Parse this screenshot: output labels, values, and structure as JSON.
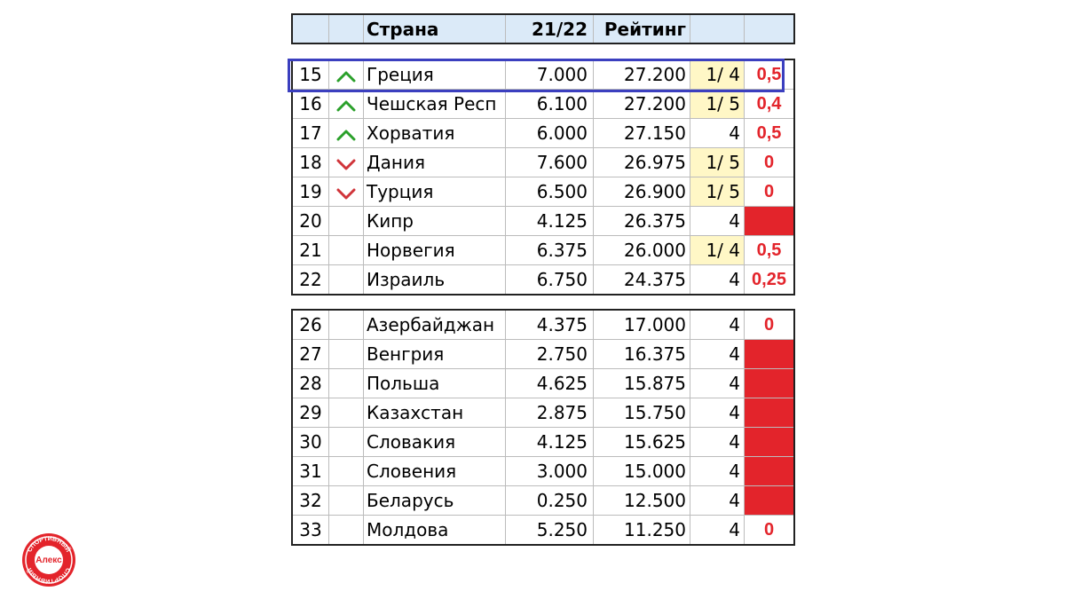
{
  "header": {
    "col_country": "Страна",
    "col_season": "21/22",
    "col_rating": "Рейтинг"
  },
  "colors": {
    "up": "#2aa02a",
    "down": "#d0343a",
    "red_fill": "#e3242b",
    "yellow_fill": "#fff7c6",
    "header_fill": "#dbeaf8",
    "highlight_border": "#3b3fbf"
  },
  "table1": [
    {
      "rank": "15",
      "trend": "up",
      "country": "Греция",
      "season": "7.000",
      "rating": "27.200",
      "pos": "1/ 4",
      "pos_bg": "yellow",
      "extra": "0,5",
      "extra_bg": "none"
    },
    {
      "rank": "16",
      "trend": "up",
      "country": "Чешская Респ",
      "season": "6.100",
      "rating": "27.200",
      "pos": "1/ 5",
      "pos_bg": "yellow",
      "extra": "0,4",
      "extra_bg": "none"
    },
    {
      "rank": "17",
      "trend": "up",
      "country": "Хорватия",
      "season": "6.000",
      "rating": "27.150",
      "pos": "4",
      "pos_bg": "none",
      "extra": "0,5",
      "extra_bg": "none"
    },
    {
      "rank": "18",
      "trend": "down",
      "country": "Дания",
      "season": "7.600",
      "rating": "26.975",
      "pos": "1/ 5",
      "pos_bg": "yellow",
      "extra": "0",
      "extra_bg": "none"
    },
    {
      "rank": "19",
      "trend": "down",
      "country": "Турция",
      "season": "6.500",
      "rating": "26.900",
      "pos": "1/ 5",
      "pos_bg": "yellow",
      "extra": "0",
      "extra_bg": "none"
    },
    {
      "rank": "20",
      "trend": "",
      "country": "Кипр",
      "season": "4.125",
      "rating": "26.375",
      "pos": "4",
      "pos_bg": "none",
      "extra": "",
      "extra_bg": "red"
    },
    {
      "rank": "21",
      "trend": "",
      "country": "Норвегия",
      "season": "6.375",
      "rating": "26.000",
      "pos": "1/ 4",
      "pos_bg": "yellow",
      "extra": "0,5",
      "extra_bg": "none"
    },
    {
      "rank": "22",
      "trend": "",
      "country": "Израиль",
      "season": "6.750",
      "rating": "24.375",
      "pos": "4",
      "pos_bg": "none",
      "extra": "0,25",
      "extra_bg": "none"
    }
  ],
  "table2": [
    {
      "rank": "26",
      "trend": "",
      "country": "Азербайджан",
      "season": "4.375",
      "rating": "17.000",
      "pos": "4",
      "pos_bg": "none",
      "extra": "0",
      "extra_bg": "none"
    },
    {
      "rank": "27",
      "trend": "",
      "country": "Венгрия",
      "season": "2.750",
      "rating": "16.375",
      "pos": "4",
      "pos_bg": "none",
      "extra": "",
      "extra_bg": "red"
    },
    {
      "rank": "28",
      "trend": "",
      "country": "Польша",
      "season": "4.625",
      "rating": "15.875",
      "pos": "4",
      "pos_bg": "none",
      "extra": "",
      "extra_bg": "red"
    },
    {
      "rank": "29",
      "trend": "",
      "country": "Казахстан",
      "season": "2.875",
      "rating": "15.750",
      "pos": "4",
      "pos_bg": "none",
      "extra": "",
      "extra_bg": "red"
    },
    {
      "rank": "30",
      "trend": "",
      "country": "Словакия",
      "season": "4.125",
      "rating": "15.625",
      "pos": "4",
      "pos_bg": "none",
      "extra": "",
      "extra_bg": "red"
    },
    {
      "rank": "31",
      "trend": "",
      "country": "Словения",
      "season": "3.000",
      "rating": "15.000",
      "pos": "4",
      "pos_bg": "none",
      "extra": "",
      "extra_bg": "red"
    },
    {
      "rank": "32",
      "trend": "",
      "country": "Беларусь",
      "season": "0.250",
      "rating": "12.500",
      "pos": "4",
      "pos_bg": "none",
      "extra": "",
      "extra_bg": "red"
    },
    {
      "rank": "33",
      "trend": "",
      "country": "Молдова",
      "season": "5.250",
      "rating": "11.250",
      "pos": "4",
      "pos_bg": "none",
      "extra": "0",
      "extra_bg": "none"
    }
  ],
  "highlighted_row": "15",
  "logo": {
    "icon": "alex-sport-logo",
    "text_top": "СПОРТИВНЫЙ",
    "text_center": "Алекс",
    "text_bottom": "СПОРТИВНЫЙ"
  }
}
